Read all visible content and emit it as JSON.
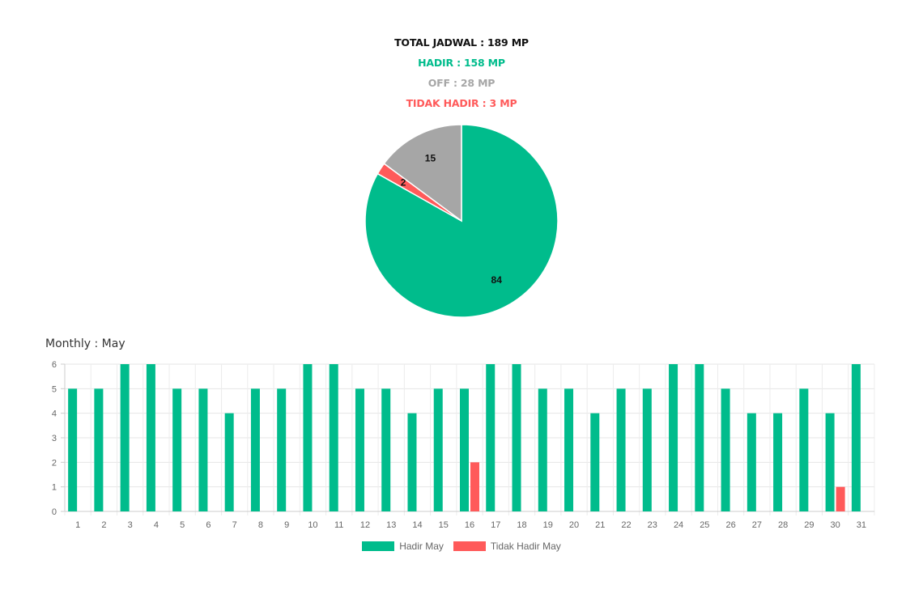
{
  "summary": {
    "total": "TOTAL JADWAL : 189 MP",
    "hadir": "HADIR : 158 MP",
    "off": "OFF : 28 MP",
    "tidak_hadir": "TIDAK HADIR : 3 MP"
  },
  "colors": {
    "hadir": "#00BC8C",
    "off": "#A6A6A6",
    "tidak_hadir": "#FF5A5A",
    "total": "#111111"
  },
  "monthly_title": "Monthly : May",
  "chart_data": [
    {
      "type": "pie",
      "slices": [
        {
          "label": "Hadir",
          "value": 84,
          "color": "#00BC8C"
        },
        {
          "label": "Tidak Hadir",
          "value": 2,
          "color": "#FF5A5A"
        },
        {
          "label": "Off",
          "value": 15,
          "color": "#A6A6A6"
        }
      ]
    },
    {
      "type": "bar",
      "categories": [
        "1",
        "2",
        "3",
        "4",
        "5",
        "6",
        "7",
        "8",
        "9",
        "10",
        "11",
        "12",
        "13",
        "14",
        "15",
        "16",
        "17",
        "18",
        "19",
        "20",
        "21",
        "22",
        "23",
        "24",
        "25",
        "26",
        "27",
        "28",
        "29",
        "30",
        "31"
      ],
      "series": [
        {
          "name": "Hadir May",
          "color": "#00BC8C",
          "values": [
            5,
            5,
            6,
            6,
            5,
            5,
            4,
            5,
            5,
            6,
            6,
            5,
            5,
            4,
            5,
            5,
            6,
            6,
            5,
            5,
            4,
            5,
            5,
            6,
            6,
            5,
            4,
            4,
            5,
            4,
            6
          ]
        },
        {
          "name": "Tidak Hadir May",
          "color": "#FF5A5A",
          "values": [
            0,
            0,
            0,
            0,
            0,
            0,
            0,
            0,
            0,
            0,
            0,
            0,
            0,
            0,
            0,
            2,
            0,
            0,
            0,
            0,
            0,
            0,
            0,
            0,
            0,
            0,
            0,
            0,
            0,
            1,
            0
          ]
        }
      ],
      "ylim": [
        0,
        6
      ],
      "yticks": [
        0,
        1,
        2,
        3,
        4,
        5,
        6
      ],
      "grid": true,
      "legend": "bottom"
    }
  ]
}
